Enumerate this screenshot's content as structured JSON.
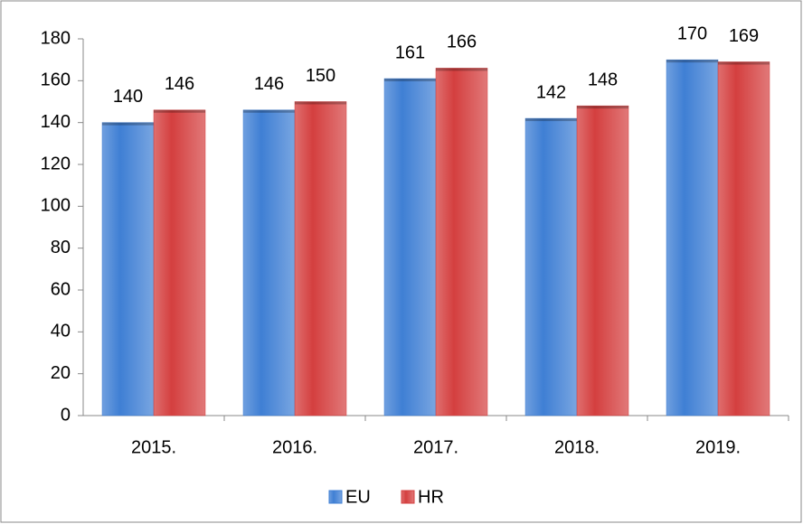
{
  "chart_data": {
    "type": "bar",
    "categories": [
      "2015.",
      "2016.",
      "2017.",
      "2018.",
      "2019."
    ],
    "series": [
      {
        "name": "EU",
        "color": "#3f7fd4",
        "values": [
          140,
          146,
          161,
          142,
          170
        ]
      },
      {
        "name": "HR",
        "color": "#d43f3f",
        "values": [
          146,
          150,
          166,
          148,
          169
        ]
      }
    ],
    "ylim": [
      0,
      180
    ],
    "yticks": [
      0,
      20,
      40,
      60,
      80,
      100,
      120,
      140,
      160,
      180
    ],
    "grid": false,
    "legend": "bottom"
  }
}
